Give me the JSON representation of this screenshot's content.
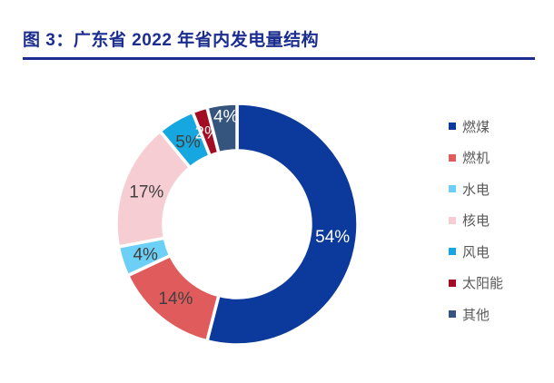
{
  "figure": {
    "title": "图 3：广东省 2022 年省内发电量结构",
    "title_color": "#1B2E8F",
    "rule_color": "#1B2E8F"
  },
  "chart_data": {
    "type": "pie",
    "subtype": "donut",
    "title": "广东省 2022 年省内发电量结构",
    "unit": "%",
    "start_angle_deg": 0,
    "direction": "clockwise",
    "legend_position": "right",
    "categories": [
      "燃煤",
      "燃机",
      "水电",
      "核电",
      "风电",
      "太阳能",
      "其他"
    ],
    "values": [
      54,
      14,
      4,
      17,
      5,
      2,
      4
    ],
    "labels": [
      "54%",
      "14%",
      "4%",
      "17%",
      "5%",
      "2%",
      "4%"
    ],
    "colors": [
      "#0C3A9C",
      "#E05C5C",
      "#6CCFF6",
      "#F6CDD3",
      "#16A7E0",
      "#A30D23",
      "#35547E"
    ],
    "label_colors": [
      "#FFFFFF",
      "#404040",
      "#404040",
      "#404040",
      "#404040",
      "#F0F0F0",
      "#FFFFFF"
    ],
    "legend_text_color": "#595959"
  }
}
